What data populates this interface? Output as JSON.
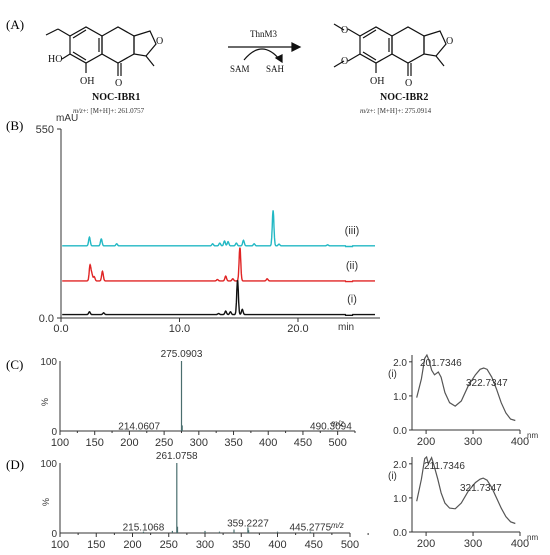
{
  "panels": {
    "a": "(A)",
    "b": "(B)",
    "c": "(C)",
    "d": "(D)"
  },
  "scheme": {
    "enzyme": "ThnM3",
    "cofactor_in": "SAM",
    "cofactor_out": "SAH",
    "substrate": {
      "name": "NOC-IBR1",
      "mz_prefix": "m/z",
      "mz_text": "+: [M+H]+: 261.0757",
      "atoms": {
        "oh1": "HO",
        "oh2": "OH",
        "o_ring": "O",
        "o_keto": "O"
      }
    },
    "product": {
      "name": "NOC-IBR2",
      "mz_prefix": "m/z",
      "mz_text": "+: [M+H]+: 275.0914",
      "atoms": {
        "o1": "O",
        "o2": "O",
        "oh": "OH",
        "o_ring": "O",
        "o_keto": "O"
      }
    }
  },
  "chart_data": [
    {
      "type": "line",
      "id": "hplc",
      "ylabel": "mAU",
      "xlabel": "min",
      "xlim": [
        0,
        26.5
      ],
      "ylim": [
        0,
        550
      ],
      "x_ticks": [
        "0.0",
        "10.0",
        "20.0"
      ],
      "x_tick_values": [
        0,
        10,
        20
      ],
      "y_ticks": [
        "0.0",
        "550"
      ],
      "y_tick_values": [
        0,
        550
      ],
      "series": [
        {
          "name": "(iii)",
          "color": "#22b8c4",
          "baseline": 210,
          "peaks": [
            [
              2.4,
              25
            ],
            [
              3.4,
              20
            ],
            [
              4.7,
              6
            ],
            [
              12.8,
              6
            ],
            [
              13.4,
              8
            ],
            [
              13.8,
              14
            ],
            [
              14.1,
              12
            ],
            [
              14.8,
              8
            ],
            [
              15.4,
              16
            ],
            [
              16.3,
              6
            ],
            [
              17.9,
              103
            ],
            [
              18.4,
              5
            ],
            [
              22.5,
              3
            ]
          ]
        },
        {
          "name": "(ii)",
          "color": "#e02424",
          "baseline": 108,
          "peaks": [
            [
              2.45,
              45
            ],
            [
              2.6,
              20
            ],
            [
              2.8,
              12
            ],
            [
              3.5,
              28
            ],
            [
              13.2,
              4
            ],
            [
              13.9,
              14
            ],
            [
              14.5,
              6
            ],
            [
              15.1,
              97
            ],
            [
              17.4,
              6
            ]
          ]
        },
        {
          "name": "(i)",
          "color": "#111111",
          "baseline": 10,
          "peaks": [
            [
              2.4,
              8
            ],
            [
              3.6,
              5
            ],
            [
              13.3,
              3
            ],
            [
              13.9,
              10
            ],
            [
              14.3,
              8
            ],
            [
              14.9,
              100
            ],
            [
              15.3,
              15
            ]
          ]
        }
      ]
    },
    {
      "type": "bar",
      "id": "ms_c",
      "xlabel": "m/z",
      "ylabel": "%",
      "xlim": [
        100,
        525
      ],
      "ylim": [
        0,
        100
      ],
      "x_ticks": [
        "100",
        "150",
        "200",
        "250",
        "300",
        "350",
        "400",
        "450",
        "500"
      ],
      "y_ticks": [
        "0",
        "100"
      ],
      "color": "#4a6e6e",
      "peaks": [
        [
          275.0903,
          100
        ],
        [
          276.1,
          8
        ],
        [
          214.0607,
          1
        ],
        [
          490.3094,
          1
        ]
      ],
      "labels": [
        {
          "mz": "275.0903",
          "x": 275.0903,
          "y": 100
        },
        {
          "mz": "214.0607",
          "x": 214.0607,
          "y": 1
        },
        {
          "mz": "490.3094",
          "x": 490.3094,
          "y": 1
        }
      ]
    },
    {
      "type": "line",
      "id": "uv_c",
      "label": "(i)",
      "xlabel": "nm",
      "xlim": [
        170,
        400
      ],
      "ylim": [
        0,
        2.2
      ],
      "x_ticks": [
        "200",
        "300",
        "400"
      ],
      "y_ticks": [
        "0.0",
        "1.0",
        "2.0"
      ],
      "peaks_text": [
        "201.7346",
        "322.7347"
      ],
      "points": [
        [
          180,
          0.95
        ],
        [
          190,
          1.5
        ],
        [
          197,
          2.1
        ],
        [
          201.7,
          2.2
        ],
        [
          206,
          2.05
        ],
        [
          212,
          1.75
        ],
        [
          218,
          1.62
        ],
        [
          226,
          1.7
        ],
        [
          232,
          1.55
        ],
        [
          240,
          1.1
        ],
        [
          250,
          0.8
        ],
        [
          262,
          0.7
        ],
        [
          275,
          0.85
        ],
        [
          290,
          1.3
        ],
        [
          305,
          1.62
        ],
        [
          315,
          1.78
        ],
        [
          322.7,
          1.82
        ],
        [
          330,
          1.78
        ],
        [
          340,
          1.55
        ],
        [
          350,
          1.2
        ],
        [
          360,
          0.8
        ],
        [
          370,
          0.5
        ],
        [
          380,
          0.32
        ],
        [
          390,
          0.28
        ]
      ]
    },
    {
      "type": "bar",
      "id": "ms_d",
      "xlabel": "m/z",
      "ylabel": "%",
      "xlim": [
        100,
        500
      ],
      "ylim": [
        0,
        100
      ],
      "x_ticks": [
        "100",
        "150",
        "200",
        "250",
        "300",
        "350",
        "400",
        "450",
        "500"
      ],
      "y_ticks": [
        "0",
        "100"
      ],
      "color": "#4a6e6e",
      "peaks": [
        [
          215.1068,
          2
        ],
        [
          255,
          3
        ],
        [
          261.0758,
          100
        ],
        [
          262.1,
          9
        ],
        [
          300,
          3
        ],
        [
          320,
          2
        ],
        [
          340,
          5
        ],
        [
          359.2227,
          8
        ],
        [
          360.2,
          4
        ],
        [
          400,
          2
        ],
        [
          445.2775,
          2
        ]
      ],
      "labels": [
        {
          "mz": "261.0758",
          "x": 261.0758,
          "y": 100
        },
        {
          "mz": "215.1068",
          "x": 215.1068,
          "y": 2
        },
        {
          "mz": "359.2227",
          "x": 359.2227,
          "y": 8
        },
        {
          "mz": "445.2775",
          "x": 445.2775,
          "y": 2
        }
      ]
    },
    {
      "type": "line",
      "id": "uv_d",
      "label": "(i)",
      "xlabel": "nm",
      "xlim": [
        170,
        400
      ],
      "ylim": [
        0,
        2.2
      ],
      "x_ticks": [
        "200",
        "300",
        "400"
      ],
      "y_ticks": [
        "0.0",
        "1.0",
        "2.0"
      ],
      "peaks_text": [
        "211.7346",
        "321.7347"
      ],
      "points": [
        [
          180,
          0.9
        ],
        [
          190,
          1.55
        ],
        [
          197,
          2.15
        ],
        [
          201,
          2.2
        ],
        [
          205,
          2.0
        ],
        [
          211.7,
          2.18
        ],
        [
          218,
          1.9
        ],
        [
          225,
          1.55
        ],
        [
          232,
          1.15
        ],
        [
          240,
          0.85
        ],
        [
          250,
          0.7
        ],
        [
          262,
          0.68
        ],
        [
          275,
          0.85
        ],
        [
          290,
          1.2
        ],
        [
          305,
          1.45
        ],
        [
          315,
          1.55
        ],
        [
          321.7,
          1.58
        ],
        [
          330,
          1.52
        ],
        [
          340,
          1.3
        ],
        [
          350,
          1.0
        ],
        [
          360,
          0.7
        ],
        [
          370,
          0.45
        ],
        [
          380,
          0.3
        ],
        [
          390,
          0.25
        ]
      ]
    }
  ]
}
